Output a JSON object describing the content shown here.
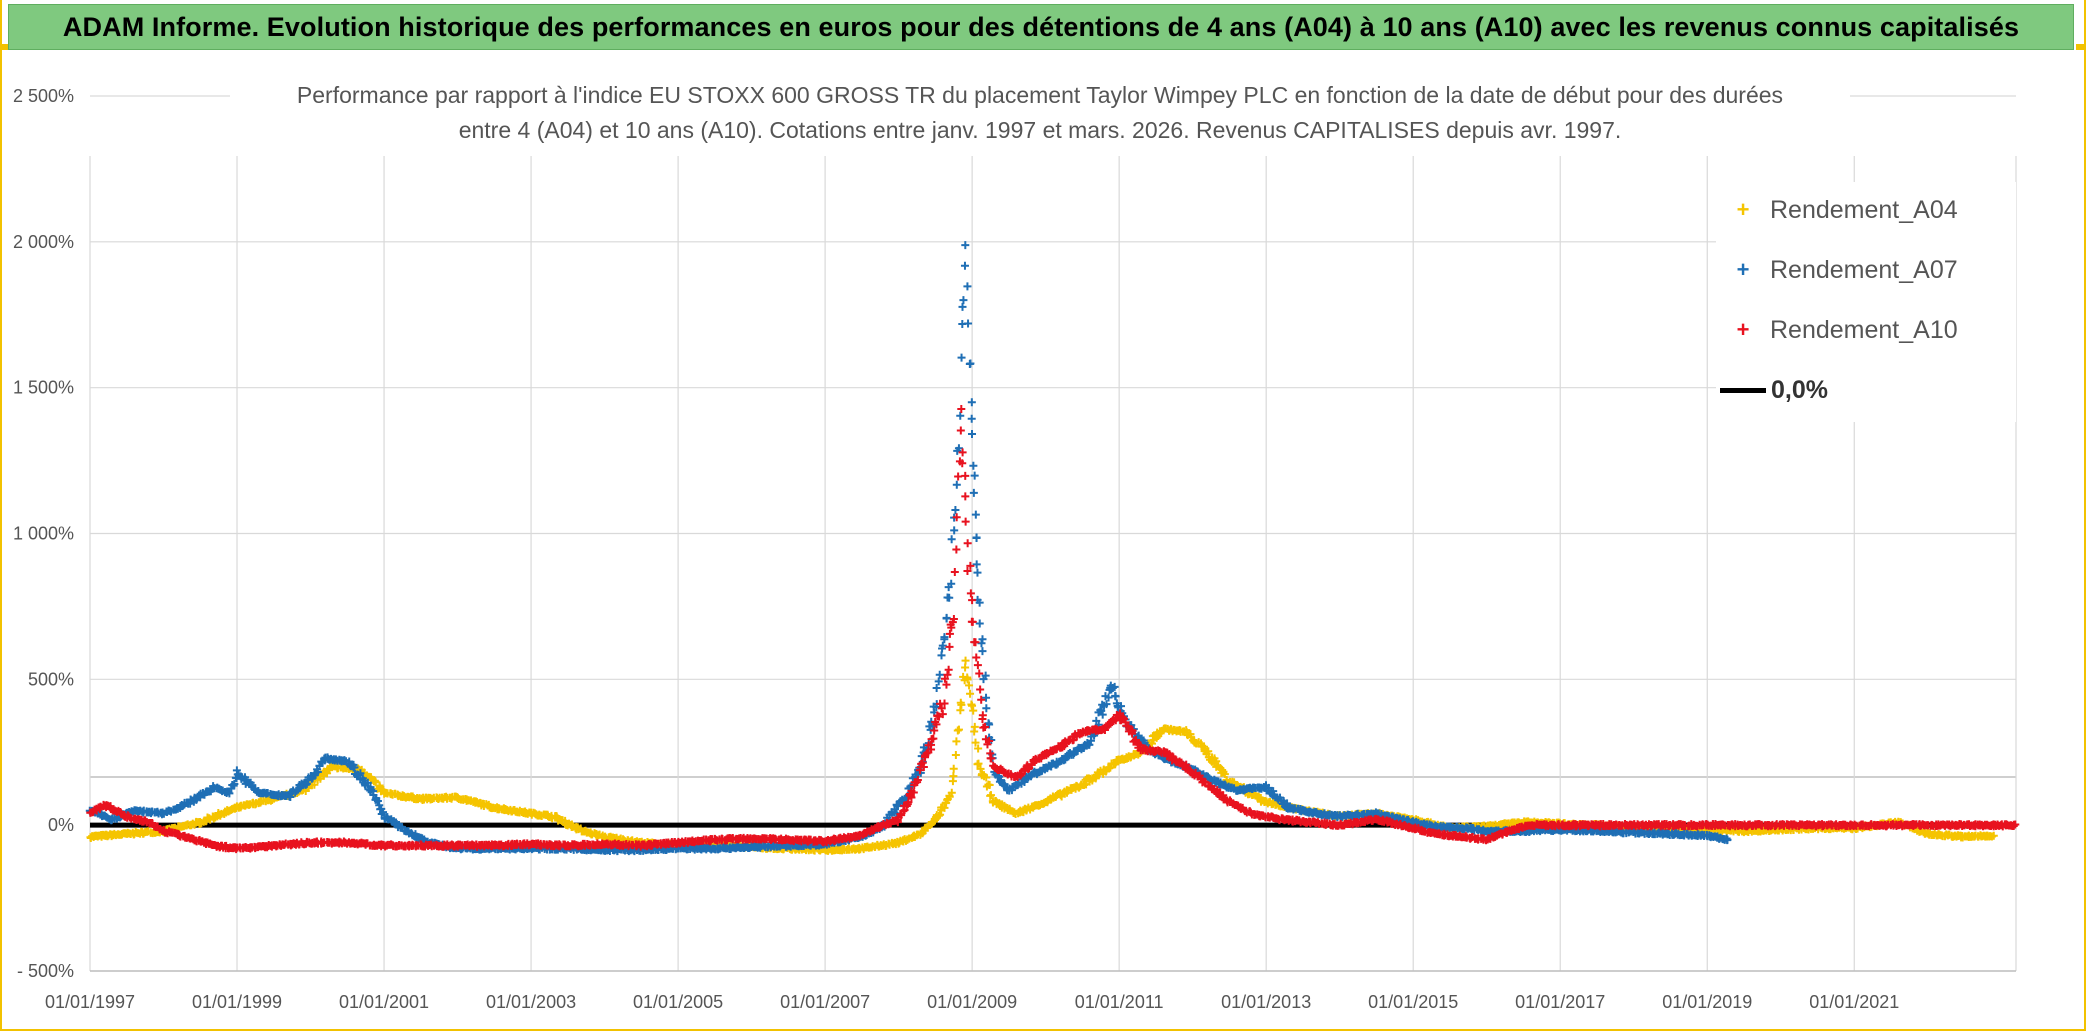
{
  "banner": {
    "text": "ADAM Informe. Evolution historique des performances en euros pour des détentions de 4 ans (A04) à 10 ans (A10) avec les revenus connus capitalisés"
  },
  "colors": {
    "A04": "#f5c400",
    "A07": "#1f6fb5",
    "A10": "#e8121f",
    "zero": "#000000",
    "grid": "#d9d9d9",
    "banner": "#7fc97f"
  },
  "chart_data": {
    "type": "scatter",
    "title_lines": [
      "Performance par rapport à l'indice EU STOXX 600 GROSS TR  du placement Taylor Wimpey PLC en fonction de la date de début pour des durées",
      "entre 4 (A04) et 10 ans (A10). Cotations entre janv. 1997 et mars. 2026. Revenus CAPITALISES depuis avr. 1997."
    ],
    "x_range": [
      1997.0,
      2023.2
    ],
    "y_range": [
      -500,
      2500
    ],
    "y_ticks": [
      -500,
      0,
      500,
      1000,
      1500,
      2000,
      2500
    ],
    "y_tick_labels": [
      "- 500%",
      "0%",
      "500%",
      "1 000%",
      "1 500%",
      "2 000%",
      "2 500%"
    ],
    "x_ticks": [
      1997,
      1999,
      2001,
      2003,
      2005,
      2007,
      2009,
      2011,
      2013,
      2015,
      2017,
      2019,
      2021
    ],
    "x_tick_labels": [
      "01/01/1997",
      "01/01/1999",
      "01/01/2001",
      "01/01/2003",
      "01/01/2005",
      "01/01/2007",
      "01/01/2009",
      "01/01/2011",
      "01/01/2013",
      "01/01/2015",
      "01/01/2017",
      "01/01/2019",
      "01/01/2021"
    ],
    "grid": true,
    "legend_position": "top-right",
    "reference_line": {
      "name": "0,0%",
      "value": 0
    },
    "series": [
      {
        "name": "Rendement_A04",
        "key": "A04",
        "points": [
          [
            1997.0,
            -40
          ],
          [
            1997.5,
            -30
          ],
          [
            1998.0,
            -20
          ],
          [
            1998.5,
            10
          ],
          [
            1999.0,
            60
          ],
          [
            1999.5,
            90
          ],
          [
            1999.9,
            120
          ],
          [
            2000.3,
            200
          ],
          [
            2000.7,
            190
          ],
          [
            2001.0,
            110
          ],
          [
            2001.5,
            90
          ],
          [
            2002.0,
            95
          ],
          [
            2002.5,
            60
          ],
          [
            2003.0,
            40
          ],
          [
            2003.3,
            30
          ],
          [
            2003.7,
            -20
          ],
          [
            2004.0,
            -40
          ],
          [
            2004.5,
            -60
          ],
          [
            2005.0,
            -70
          ],
          [
            2005.5,
            -70
          ],
          [
            2006.0,
            -75
          ],
          [
            2006.5,
            -80
          ],
          [
            2007.0,
            -85
          ],
          [
            2007.5,
            -80
          ],
          [
            2008.0,
            -60
          ],
          [
            2008.3,
            -30
          ],
          [
            2008.5,
            20
          ],
          [
            2008.7,
            100
          ],
          [
            2008.8,
            300
          ],
          [
            2008.9,
            550
          ],
          [
            2009.0,
            400
          ],
          [
            2009.1,
            200
          ],
          [
            2009.3,
            80
          ],
          [
            2009.6,
            40
          ],
          [
            2010.0,
            80
          ],
          [
            2010.5,
            140
          ],
          [
            2011.0,
            220
          ],
          [
            2011.3,
            250
          ],
          [
            2011.6,
            330
          ],
          [
            2011.9,
            320
          ],
          [
            2012.2,
            250
          ],
          [
            2012.5,
            150
          ],
          [
            2013.0,
            80
          ],
          [
            2013.5,
            50
          ],
          [
            2014.0,
            30
          ],
          [
            2014.5,
            40
          ],
          [
            2015.0,
            20
          ],
          [
            2015.5,
            -10
          ],
          [
            2016.0,
            -5
          ],
          [
            2016.5,
            10
          ],
          [
            2017.0,
            5
          ],
          [
            2017.5,
            0
          ],
          [
            2018.0,
            -10
          ],
          [
            2018.5,
            -10
          ],
          [
            2019.0,
            -15
          ],
          [
            2019.5,
            -20
          ],
          [
            2020.0,
            -15
          ],
          [
            2020.5,
            -10
          ],
          [
            2021.0,
            -10
          ],
          [
            2021.6,
            10
          ],
          [
            2022.0,
            -30
          ],
          [
            2022.5,
            -40
          ],
          [
            2022.9,
            -35
          ]
        ]
      },
      {
        "name": "Rendement_A07",
        "key": "A07",
        "points": [
          [
            1997.0,
            50
          ],
          [
            1997.3,
            20
          ],
          [
            1997.6,
            50
          ],
          [
            1998.0,
            40
          ],
          [
            1998.3,
            70
          ],
          [
            1998.7,
            130
          ],
          [
            1998.9,
            110
          ],
          [
            1999.0,
            180
          ],
          [
            1999.3,
            110
          ],
          [
            1999.7,
            100
          ],
          [
            2000.0,
            160
          ],
          [
            2000.2,
            230
          ],
          [
            2000.5,
            220
          ],
          [
            2000.8,
            130
          ],
          [
            2001.0,
            30
          ],
          [
            2001.3,
            -20
          ],
          [
            2001.6,
            -60
          ],
          [
            2002.0,
            -80
          ],
          [
            2002.5,
            -80
          ],
          [
            2003.0,
            -80
          ],
          [
            2003.5,
            -80
          ],
          [
            2004.0,
            -85
          ],
          [
            2004.5,
            -85
          ],
          [
            2005.0,
            -80
          ],
          [
            2005.5,
            -80
          ],
          [
            2006.0,
            -75
          ],
          [
            2006.5,
            -70
          ],
          [
            2007.0,
            -65
          ],
          [
            2007.5,
            -40
          ],
          [
            2007.8,
            0
          ],
          [
            2008.1,
            100
          ],
          [
            2008.3,
            200
          ],
          [
            2008.5,
            400
          ],
          [
            2008.7,
            800
          ],
          [
            2008.8,
            1250
          ],
          [
            2008.9,
            1950
          ],
          [
            2009.0,
            1400
          ],
          [
            2009.05,
            1000
          ],
          [
            2009.1,
            700
          ],
          [
            2009.2,
            400
          ],
          [
            2009.3,
            180
          ],
          [
            2009.5,
            120
          ],
          [
            2009.8,
            170
          ],
          [
            2010.2,
            220
          ],
          [
            2010.6,
            280
          ],
          [
            2010.9,
            480
          ],
          [
            2011.1,
            350
          ],
          [
            2011.4,
            260
          ],
          [
            2011.7,
            220
          ],
          [
            2012.0,
            190
          ],
          [
            2012.3,
            150
          ],
          [
            2012.6,
            120
          ],
          [
            2013.0,
            130
          ],
          [
            2013.3,
            60
          ],
          [
            2013.7,
            40
          ],
          [
            2014.0,
            30
          ],
          [
            2014.5,
            40
          ],
          [
            2015.0,
            10
          ],
          [
            2015.3,
            -5
          ],
          [
            2015.7,
            -10
          ],
          [
            2016.0,
            -20
          ],
          [
            2016.5,
            -20
          ],
          [
            2017.0,
            -15
          ],
          [
            2017.5,
            -20
          ],
          [
            2018.0,
            -25
          ],
          [
            2018.5,
            -30
          ],
          [
            2019.0,
            -35
          ],
          [
            2019.3,
            -50
          ]
        ]
      },
      {
        "name": "Rendement_A10",
        "key": "A10",
        "points": [
          [
            1997.0,
            40
          ],
          [
            1997.2,
            70
          ],
          [
            1997.5,
            30
          ],
          [
            1997.8,
            10
          ],
          [
            1998.0,
            -20
          ],
          [
            1998.3,
            -40
          ],
          [
            1998.7,
            -70
          ],
          [
            1999.0,
            -80
          ],
          [
            1999.5,
            -70
          ],
          [
            2000.0,
            -60
          ],
          [
            2000.5,
            -60
          ],
          [
            2001.0,
            -70
          ],
          [
            2001.5,
            -70
          ],
          [
            2002.0,
            -70
          ],
          [
            2002.5,
            -70
          ],
          [
            2003.0,
            -65
          ],
          [
            2003.5,
            -70
          ],
          [
            2004.0,
            -65
          ],
          [
            2004.5,
            -70
          ],
          [
            2005.0,
            -60
          ],
          [
            2005.5,
            -50
          ],
          [
            2006.0,
            -45
          ],
          [
            2006.5,
            -50
          ],
          [
            2007.0,
            -55
          ],
          [
            2007.4,
            -40
          ],
          [
            2007.7,
            -10
          ],
          [
            2008.0,
            20
          ],
          [
            2008.2,
            120
          ],
          [
            2008.4,
            250
          ],
          [
            2008.6,
            420
          ],
          [
            2008.75,
            750
          ],
          [
            2008.85,
            1400
          ],
          [
            2008.95,
            900
          ],
          [
            2009.05,
            600
          ],
          [
            2009.15,
            350
          ],
          [
            2009.3,
            200
          ],
          [
            2009.6,
            160
          ],
          [
            2009.9,
            230
          ],
          [
            2010.2,
            270
          ],
          [
            2010.5,
            320
          ],
          [
            2010.8,
            330
          ],
          [
            2011.0,
            380
          ],
          [
            2011.3,
            260
          ],
          [
            2011.6,
            250
          ],
          [
            2011.9,
            200
          ],
          [
            2012.2,
            140
          ],
          [
            2012.5,
            80
          ],
          [
            2012.8,
            40
          ],
          [
            2013.2,
            20
          ],
          [
            2013.6,
            10
          ],
          [
            2014.0,
            0
          ],
          [
            2014.5,
            20
          ],
          [
            2015.0,
            -10
          ],
          [
            2015.3,
            -30
          ],
          [
            2015.7,
            -40
          ],
          [
            2016.0,
            -50
          ],
          [
            2016.3,
            -20
          ],
          [
            2016.6,
            0
          ],
          [
            2017.5,
            0
          ],
          [
            2018.5,
            0
          ],
          [
            2019.5,
            0
          ],
          [
            2020.5,
            0
          ],
          [
            2021.5,
            0
          ],
          [
            2022.5,
            0
          ],
          [
            2023.2,
            0
          ]
        ]
      }
    ]
  }
}
